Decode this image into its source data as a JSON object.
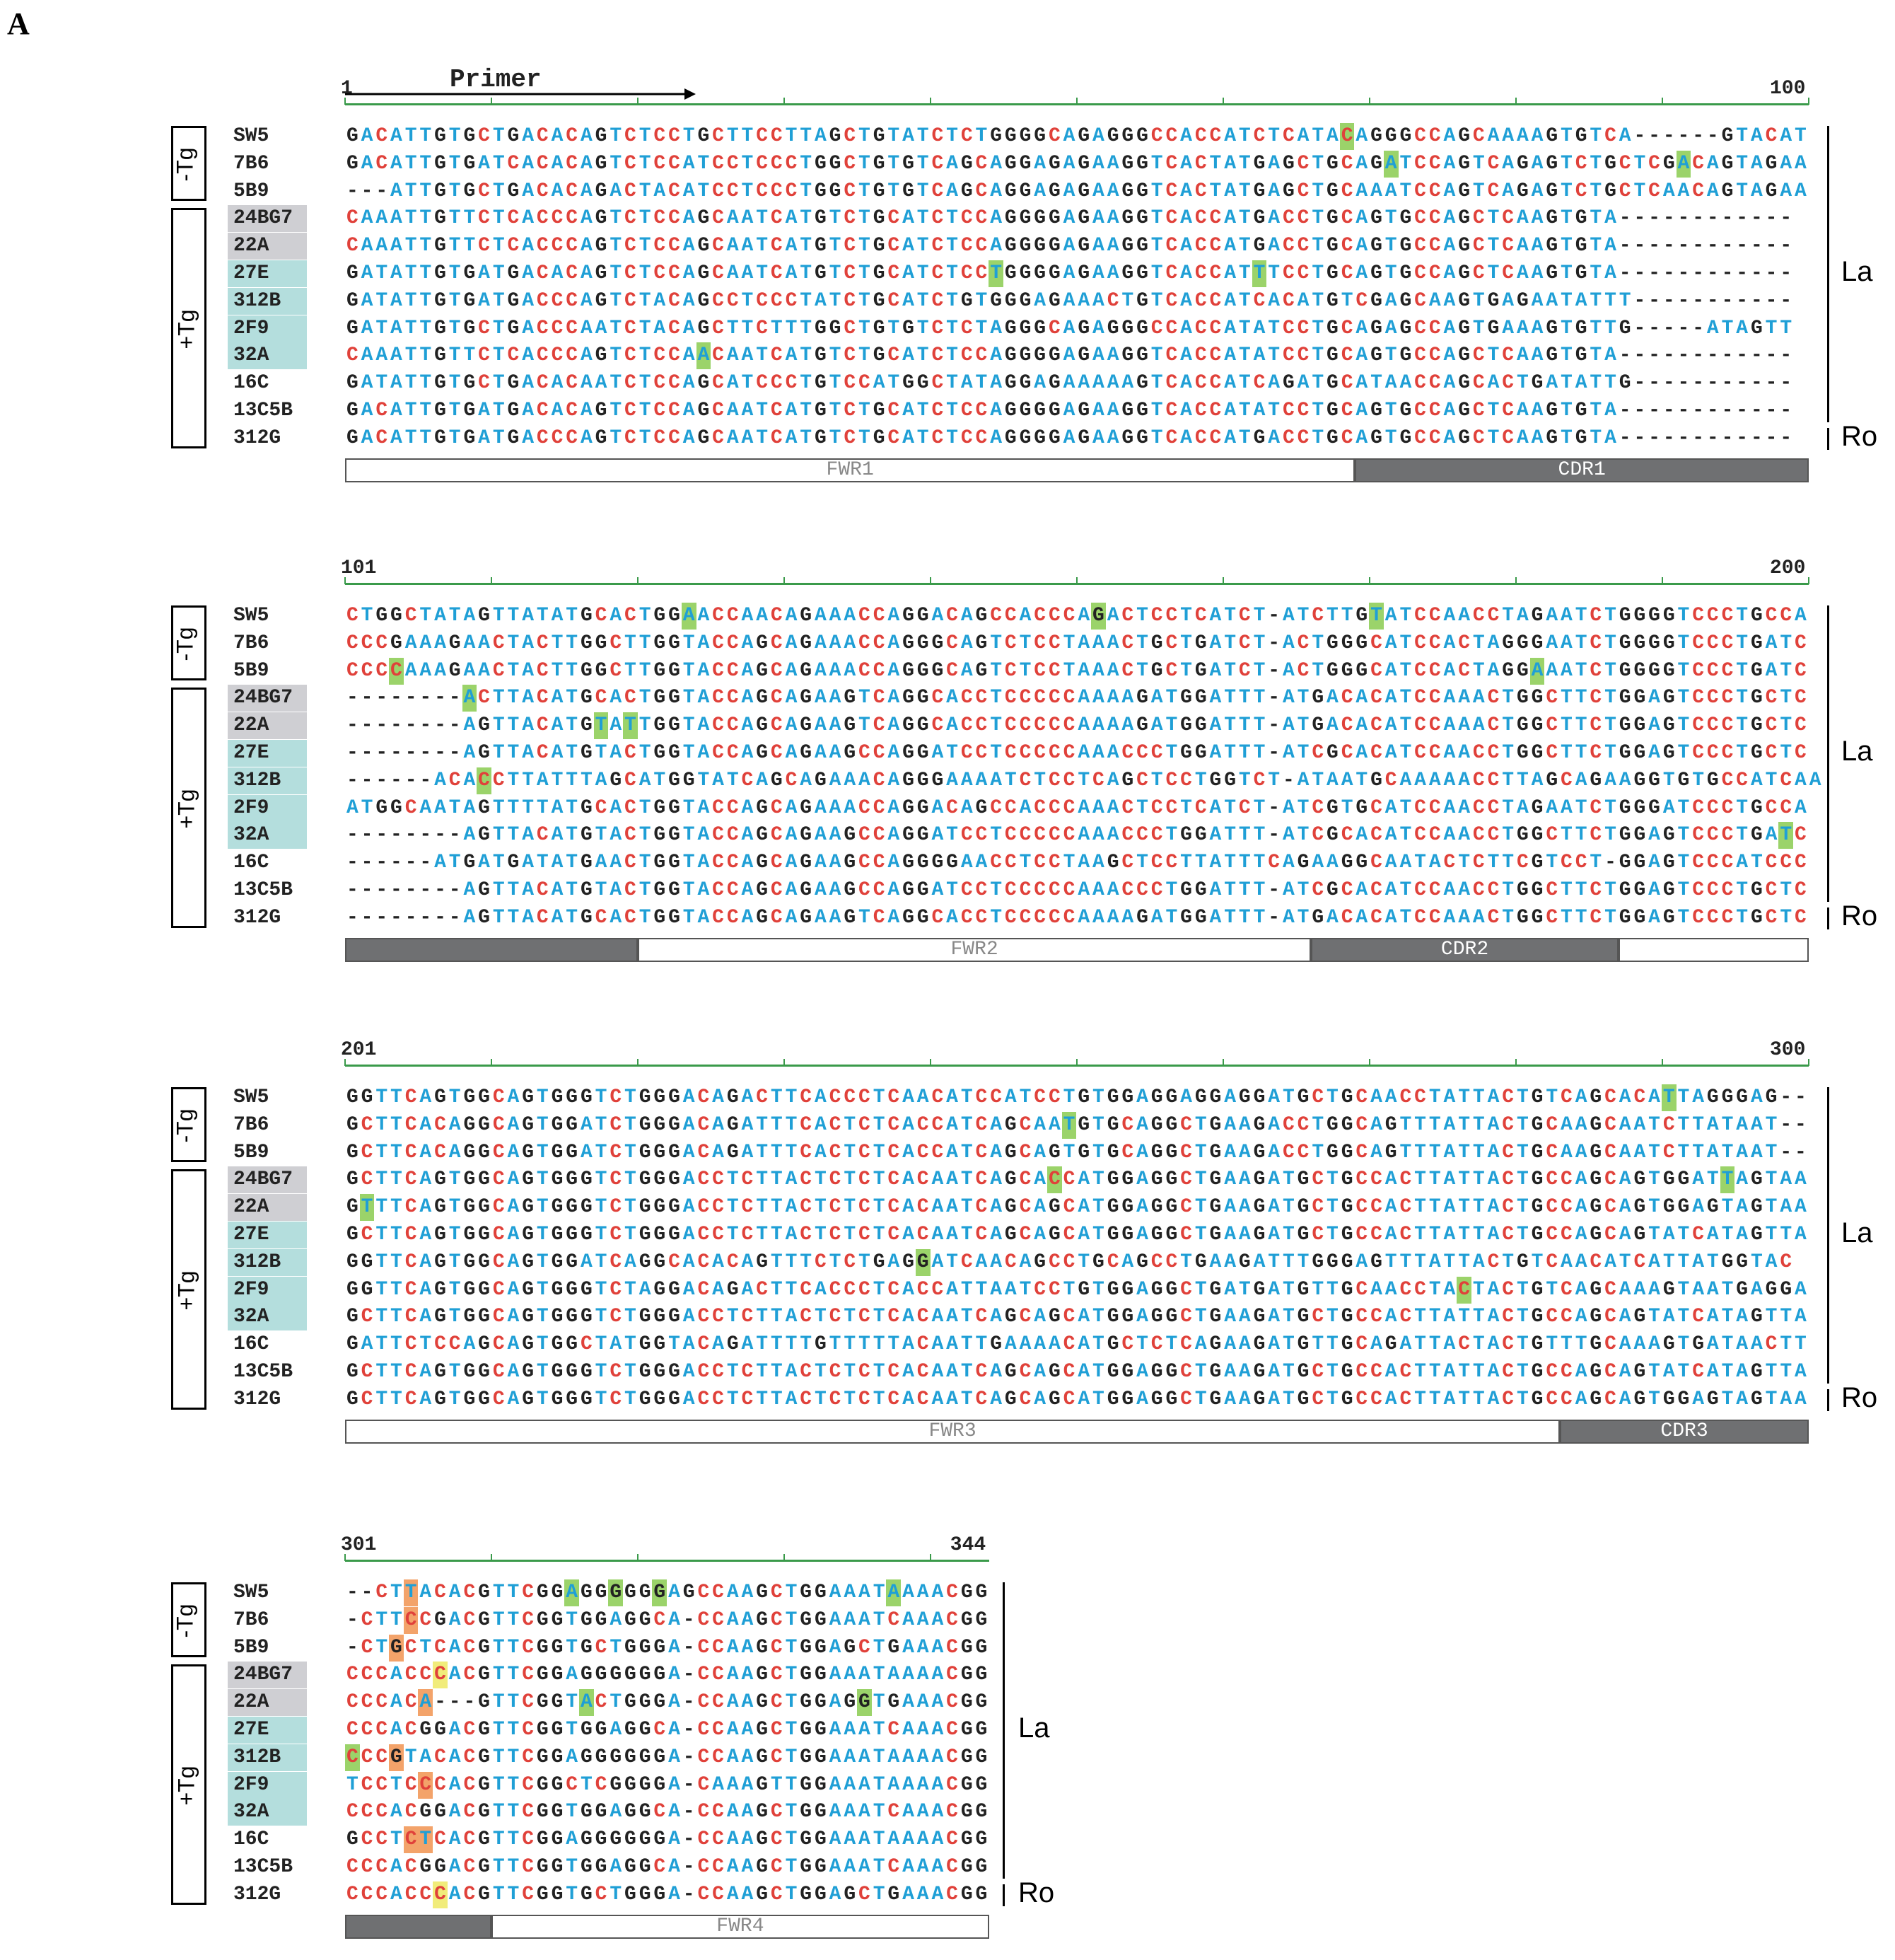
{
  "figure": {
    "panel_label": "A",
    "primer_label": "Primer",
    "groups": {
      "neg": "-Tg",
      "pos": "+Tg"
    },
    "tags": {
      "la": "La",
      "ro": "Ro"
    },
    "colors": {
      "A": "#1f9fd6",
      "C": "#e0413a",
      "G": "#222222",
      "T": "#1f9fd6",
      "gap": "#222222",
      "label_gray": "#cfcfd3",
      "label_teal": "#b4dedd",
      "hl_green": "#9bd36a",
      "hl_orange": "#f3a36a",
      "hl_yellow": "#f1ec7a"
    },
    "samples": [
      "SW5",
      "7B6",
      "5B9",
      "24BG7",
      "22A",
      "27E",
      "312B",
      "2F9",
      "32A",
      "16C",
      "13C5B",
      "312G"
    ],
    "sample_shading": [
      "none",
      "none",
      "none",
      "gray",
      "gray",
      "teal",
      "teal",
      "teal",
      "teal",
      "none",
      "none",
      "none"
    ],
    "blocks": [
      {
        "start_label": "1",
        "end_label": "100",
        "rows": [
          "GACATTGTGCTGACACAGTCTCCTGCTTCCTTAGCTGTATCTCTGGGGCAGAGGGCCACCATCTCATACAGGGCCAGCAAAAGTGTCA------GTACAT",
          "GACATTGTGATCACACAGTCTCCATCCTCCCTGGCTGTGTCAGCAGGAGAGAAGGTCACTATGAGCTGCAGATCCAGTCAGAGTCTGCTCGACAGTAGAA",
          "---ATTGTGCTGACACAGACTACATCCTCCCTGGCTGTGTCAGCAGGAGAGAAGGTCACTATGAGCTGCAAATCCAGTCAGAGTCTGCTCAACAGTAGAA",
          "CAAATTGTTCTCACCCAGTCTCCAGCAATCATGTCTGCATCTCCAGGGGAGAAGGTCACCATGACCTGCAGTGCCAGCTCAAGTGTA------------",
          "CAAATTGTTCTCACCCAGTCTCCAGCAATCATGTCTGCATCTCCAGGGGAGAAGGTCACCATGACCTGCAGTGCCAGCTCAAGTGTA------------",
          "GATATTGTGATGACACAGTCTCCAGCAATCATGTCTGCATCTCCTGGGGAGAAGGTCACCATTTCCTGCAGTGCCAGCTCAAGTGTA------------",
          "GATATTGTGATGACCCAGTCTACAGCCTCCCTATCTGCATCTGTGGGAGAAACTGTCACCATCACATGTCGAGCAAGTGAGAATATTT-----------",
          "GATATTGTGCTGACCCAATCTACAGCTTCTTTGGCTGTGTCTCTAGGGCAGAGGGCCACCATATCCTGCAGAGCCAGTGAAAGTGTTG-----ATAGTT",
          "CAAATTGTTCTCACCCAGTCTCCAACAATCATGTCTGCATCTCCAGGGGAGAAGGTCACCATATCCTGCAGTGCCAGCTCAAGTGTA------------",
          "GATATTGTGCTGACACAATCTCCAGCATCCCTGTCCATGGCTATAGGAGAAAAAGTCACCATCAGATGCATAACCAGCACTGATATTG-----------",
          "GACATTGTGATGACACAGTCTCCAGCAATCATGTCTGCATCTCCAGGGGAGAAGGTCACCATATCCTGCAGTGCCAGCTCAAGTGTA------------",
          "GACATTGTGATGACCCAGTCTCCAGCAATCATGTCTGCATCTCCAGGGGAGAAGGTCACCATGACCTGCAGTGCCAGCTCAAGTGTA------------"
        ],
        "regions": [
          {
            "name": "FWR1",
            "style": "light",
            "from": 0,
            "to": 69
          },
          {
            "name": "CDR1",
            "style": "dark",
            "from": 69,
            "to": 100
          }
        ],
        "highlights": [
          {
            "row": 0,
            "col": 68,
            "color": "green"
          },
          {
            "row": 1,
            "col": 71,
            "color": "green"
          },
          {
            "row": 1,
            "col": 91,
            "color": "green"
          },
          {
            "row": 5,
            "col": 44,
            "color": "green"
          },
          {
            "row": 5,
            "col": 62,
            "color": "green"
          },
          {
            "row": 8,
            "col": 24,
            "color": "green"
          }
        ]
      },
      {
        "start_label": "101",
        "end_label": "200",
        "rows": [
          "CTGGCTATAGTTATATGCACTGGAACCAACAGAAACCAGGACAGCCACCCAGACTCCTCATCT-ATCTTGTATCCAACCTAGAATCTGGGGTCCCTGCCA",
          "CCCGAAAGAACTACTTGGCTTGGTACCAGCAGAAACCAGGGCAGTCTCCTAAACTGCTGATCT-ACTGGGCATCCACTAGGGAATCTGGGGTCCCTGATC",
          "CCCCAAAGAACTACTTGGCTTGGTACCAGCAGAAACCAGGGCAGTCTCCTAAACTGCTGATCT-ACTGGGCATCCACTAGGAAATCTGGGGTCCCTGATC",
          "--------ACTTACATGCACTGGTACCAGCAGAAGTCAGGCACCTCCCCCAAAAGATGGATTT-ATGACACATCCAAACTGGCTTCTGGAGTCCCTGCTC",
          "--------AGTTACATGTATTGGTACCAGCAGAAGTCAGGCACCTCCCCCAAAAGATGGATTT-ATGACACATCCAAACTGGCTTCTGGAGTCCCTGCTC",
          "--------AGTTACATGTACTGGTACCAGCAGAAGCCAGGATCCTCCCCCAAACCCTGGATTT-ATCGCACATCCAACCTGGCTTCTGGAGTCCCTGCTC",
          "------ACACCTTATTTAGCATGGTATCAGCAGAAACAGGGAAAATCTCCTCAGCTCCTGGTCT-ATAATGCAAAAACCTTAGCAGAAGGTGTGCCATCAA",
          "ATGGCAATAGTTTTATGCACTGGTACCAGCAGAAACCAGGACAGCCACCCAAACTCCTCATCT-ATCGTGCATCCAACCTAGAATCTGGGATCCCTGCCA",
          "--------AGTTACATGTACTGGTACCAGCAGAAGCCAGGATCCTCCCCCAAACCCTGGATTT-ATCGCACATCCAACCTGGCTTCTGGAGTCCCTGATC",
          "------ATGATGATATGAACTGGTACCAGCAGAAGCCAGGGGAACCTCCTAAGCTCCTTATTTCAGAAGGCAATACTCTTCGTCCT-GGAGTCCCATCCC",
          "--------AGTTACATGTACTGGTACCAGCAGAAGCCAGGATCCTCCCCCAAACCCTGGATTT-ATCGCACATCCAACCTGGCTTCTGGAGTCCCTGCTC",
          "--------AGTTACATGCACTGGTACCAGCAGAAGTCAGGCACCTCCCCCAAAAGATGGATTT-ATGACACATCCAAACTGGCTTCTGGAGTCCCTGCTC"
        ],
        "regions": [
          {
            "name": "",
            "style": "dark",
            "from": 0,
            "to": 20
          },
          {
            "name": "FWR2",
            "style": "light",
            "from": 20,
            "to": 66
          },
          {
            "name": "CDR2",
            "style": "dark",
            "from": 66,
            "to": 87
          },
          {
            "name": "",
            "style": "light",
            "from": 87,
            "to": 100
          }
        ],
        "highlights": [
          {
            "row": 0,
            "col": 23,
            "color": "green"
          },
          {
            "row": 0,
            "col": 51,
            "color": "green"
          },
          {
            "row": 0,
            "col": 70,
            "color": "green"
          },
          {
            "row": 2,
            "col": 3,
            "color": "green"
          },
          {
            "row": 2,
            "col": 81,
            "color": "green"
          },
          {
            "row": 3,
            "col": 8,
            "color": "green"
          },
          {
            "row": 4,
            "col": 17,
            "color": "green"
          },
          {
            "row": 4,
            "col": 19,
            "color": "green"
          },
          {
            "row": 6,
            "col": 9,
            "color": "green"
          },
          {
            "row": 8,
            "col": 98,
            "color": "green"
          }
        ]
      },
      {
        "start_label": "201",
        "end_label": "300",
        "rows": [
          "GGTTCAGTGGCAGTGGGTCTGGGACAGACTTCACCCTCAACATCCATCCTGTGGAGGAGGAGGATGCTGCAACCTATTACTGTCAGCACATTAGGGAG--",
          "GCTTCACAGGCAGTGGATCTGGGACAGATTTCACTCTCACCATCAGCAATGTGCAGGCTGAAGACCTGGCAGTTTATTACTGCAAGCAATCTTATAAT--",
          "GCTTCACAGGCAGTGGATCTGGGACAGATTTCACTCTCACCATCAGCAGTGTGCAGGCTGAAGACCTGGCAGTTTATTACTGCAAGCAATCTTATAAT--",
          "GCTTCAGTGGCAGTGGGTCTGGGACCTCTTACTCTCTCACAATCAGCACCATGGAGGCTGAAGATGCTGCCACTTATTACTGCCAGCAGTGGATTAGTAA",
          "GTTTCAGTGGCAGTGGGTCTGGGACCTCTTACTCTCTCACAATCAGCAGCATGGAGGCTGAAGATGCTGCCACTTATTACTGCCAGCAGTGGAGTAGTAA",
          "GCTTCAGTGGCAGTGGGTCTGGGACCTCTTACTCTCTCACAATCAGCAGCATGGAGGCTGAAGATGCTGCCACTTATTACTGCCAGCAGTATCATAGTTA",
          "GGTTCAGTGGCAGTGGATCAGGCACACAGTTTCTCTGAGGATCAACAGCCTGCAGCCTGAAGATTTGGGAGTTTATTACTGTCAACATCATTATGGTAC",
          "GGTTCAGTGGCAGTGGGTCTAGGACAGACTTCACCCTCACCATTAATCCTGTGGAGGCTGATGATGTTGCAACCTACTACTGTCAGCAAAGTAATGAGGA",
          "GCTTCAGTGGCAGTGGGTCTGGGACCTCTTACTCTCTCACAATCAGCAGCATGGAGGCTGAAGATGCTGCCACTTATTACTGCCAGCAGTATCATAGTTA",
          "GATTCTCCAGCAGTGGCTATGGTACAGATTTTGTTTTTACAATTGAAAACATGCTCTCAGAAGATGTTGCAGATTACTACTGTTTGCAAAGTGATAACTT",
          "GCTTCAGTGGCAGTGGGTCTGGGACCTCTTACTCTCTCACAATCAGCAGCATGGAGGCTGAAGATGCTGCCACTTATTACTGCCAGCAGTATCATAGTTA",
          "GCTTCAGTGGCAGTGGGTCTGGGACCTCTTACTCTCTCACAATCAGCAGCATGGAGGCTGAAGATGCTGCCACTTATTACTGCCAGCAGTGGAGTAGTAA"
        ],
        "regions": [
          {
            "name": "FWR3",
            "style": "light",
            "from": 0,
            "to": 83
          },
          {
            "name": "CDR3",
            "style": "dark",
            "from": 83,
            "to": 100
          }
        ],
        "highlights": [
          {
            "row": 0,
            "col": 90,
            "color": "green"
          },
          {
            "row": 1,
            "col": 49,
            "color": "green"
          },
          {
            "row": 3,
            "col": 48,
            "color": "green"
          },
          {
            "row": 3,
            "col": 94,
            "color": "green"
          },
          {
            "row": 4,
            "col": 1,
            "color": "green"
          },
          {
            "row": 6,
            "col": 39,
            "color": "green"
          },
          {
            "row": 7,
            "col": 76,
            "color": "green"
          }
        ]
      },
      {
        "start_label": "301",
        "end_label": "344",
        "rows": [
          "--CTTACACGTTCGGAGGGGGGAGCCAAGCTGGAAATAAAACGG",
          "-CTTCCGACGTTCGGTGGAGGCA-CCAAGCTGGAAATCAAACGG",
          "-CTGCTCACGTTCGGTGCTGGGA-CCAAGCTGGAGCTGAAACGG",
          "CCCACCCACGTTCGGAGGGGGGA-CCAAGCTGGAAATAAAACGG",
          "CCCACA---GTTCGGTACTGGGA-CCAAGCTGGAGGTGAAACGG",
          "CCCACGGACGTTCGGTGGAGGCA-CCAAGCTGGAAATCAAACGG",
          "CCCGTACACGTTCGGAGGGGGGA-CCAAGCTGGAAATAAAACGG",
          "TCCTCCCACGTTCGGCTCGGGGA-CAAAGTTGGAAATAAAACGG",
          "CCCACGGACGTTCGGTGGAGGCA-CCAAGCTGGAAATCAAACGG",
          "GCCTCTCACGTTCGGAGGGGGGA-CCAAGCTGGAAATAAAACGG",
          "CCCACGGACGTTCGGTGGAGGCA-CCAAGCTGGAAATCAAACGG",
          "CCCACCCACGTTCGGTGCTGGGA-CCAAGCTGGAGCTGAAACGG"
        ],
        "regions": [
          {
            "name": "",
            "style": "dark",
            "from": 0,
            "to": 10
          },
          {
            "name": "FWR4",
            "style": "light",
            "from": 10,
            "to": 44
          }
        ],
        "highlights": [
          {
            "row": 0,
            "col": 4,
            "color": "orange"
          },
          {
            "row": 0,
            "col": 15,
            "color": "green"
          },
          {
            "row": 0,
            "col": 18,
            "color": "green"
          },
          {
            "row": 0,
            "col": 21,
            "color": "green"
          },
          {
            "row": 0,
            "col": 37,
            "color": "green"
          },
          {
            "row": 1,
            "col": 4,
            "color": "orange"
          },
          {
            "row": 2,
            "col": 3,
            "color": "orange"
          },
          {
            "row": 3,
            "col": 6,
            "color": "yellow"
          },
          {
            "row": 4,
            "col": 5,
            "color": "orange"
          },
          {
            "row": 4,
            "col": 16,
            "color": "green"
          },
          {
            "row": 4,
            "col": 35,
            "color": "green"
          },
          {
            "row": 6,
            "col": 0,
            "color": "green"
          },
          {
            "row": 6,
            "col": 3,
            "color": "orange"
          },
          {
            "row": 7,
            "col": 5,
            "color": "orange"
          },
          {
            "row": 9,
            "col": 4,
            "color": "orange"
          },
          {
            "row": 9,
            "col": 5,
            "color": "orange"
          },
          {
            "row": 11,
            "col": 6,
            "color": "yellow"
          }
        ]
      }
    ]
  }
}
